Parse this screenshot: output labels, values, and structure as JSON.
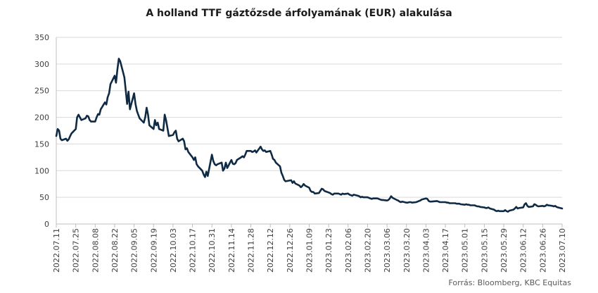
{
  "chart_data": {
    "type": "line",
    "title": "A holland TTF gáztőzsde árfolyamának (EUR) alakulása",
    "xlabel": "",
    "ylabel": "",
    "ylim": [
      0,
      350
    ],
    "yticks": [
      "0",
      "50",
      "100",
      "150",
      "200",
      "250",
      "300",
      "350"
    ],
    "xticks": [
      "2022.07.11",
      "2022.07.25",
      "2022.08.08",
      "2022.08.22",
      "2022.09.05",
      "2022.09.19",
      "2022.10.03",
      "2022.10.17",
      "2022.10.31",
      "2022.11.14",
      "2022.11.28",
      "2022.12.12",
      "2022.12.26",
      "2023.01.09",
      "2023.01.23",
      "2023.02.06",
      "2023.02.20",
      "2023.03.06",
      "2023.03.20",
      "2023.04.03",
      "2023.04.17",
      "2023.05.01",
      "2023.05.15",
      "2023.05.29",
      "2023.06.12",
      "2023.06.26",
      "2023.07.10"
    ],
    "grid": "horizontal",
    "color": "#0f2a44",
    "series": [
      {
        "values": [
          [
            "2022.07.11",
            165
          ],
          [
            "2022.07.12",
            178
          ],
          [
            "2022.07.13",
            175
          ],
          [
            "2022.07.14",
            160
          ],
          [
            "2022.07.15",
            157
          ],
          [
            "2022.07.18",
            160
          ],
          [
            "2022.07.19",
            156
          ],
          [
            "2022.07.20",
            159
          ],
          [
            "2022.07.21",
            165
          ],
          [
            "2022.07.22",
            170
          ],
          [
            "2022.07.25",
            178
          ],
          [
            "2022.07.26",
            200
          ],
          [
            "2022.07.27",
            205
          ],
          [
            "2022.07.28",
            200
          ],
          [
            "2022.07.29",
            195
          ],
          [
            "2022.08.01",
            198
          ],
          [
            "2022.08.02",
            203
          ],
          [
            "2022.08.03",
            202
          ],
          [
            "2022.08.04",
            195
          ],
          [
            "2022.08.05",
            192
          ],
          [
            "2022.08.08",
            192
          ],
          [
            "2022.08.09",
            200
          ],
          [
            "2022.08.10",
            206
          ],
          [
            "2022.08.11",
            205
          ],
          [
            "2022.08.12",
            215
          ],
          [
            "2022.08.15",
            228
          ],
          [
            "2022.08.16",
            224
          ],
          [
            "2022.08.17",
            238
          ],
          [
            "2022.08.18",
            245
          ],
          [
            "2022.08.19",
            262
          ],
          [
            "2022.08.22",
            278
          ],
          [
            "2022.08.23",
            265
          ],
          [
            "2022.08.24",
            290
          ],
          [
            "2022.08.25",
            310
          ],
          [
            "2022.08.26",
            305
          ],
          [
            "2022.08.29",
            275
          ],
          [
            "2022.08.30",
            250
          ],
          [
            "2022.08.31",
            225
          ],
          [
            "2022.09.01",
            248
          ],
          [
            "2022.09.02",
            215
          ],
          [
            "2022.09.05",
            245
          ],
          [
            "2022.09.06",
            225
          ],
          [
            "2022.09.07",
            212
          ],
          [
            "2022.09.08",
            205
          ],
          [
            "2022.09.09",
            198
          ],
          [
            "2022.09.12",
            190
          ],
          [
            "2022.09.13",
            200
          ],
          [
            "2022.09.14",
            218
          ],
          [
            "2022.09.15",
            205
          ],
          [
            "2022.09.16",
            185
          ],
          [
            "2022.09.19",
            178
          ],
          [
            "2022.09.20",
            195
          ],
          [
            "2022.09.21",
            185
          ],
          [
            "2022.09.22",
            190
          ],
          [
            "2022.09.23",
            178
          ],
          [
            "2022.09.26",
            175
          ],
          [
            "2022.09.27",
            205
          ],
          [
            "2022.09.28",
            195
          ],
          [
            "2022.09.29",
            180
          ],
          [
            "2022.09.30",
            165
          ],
          [
            "2022.10.03",
            167
          ],
          [
            "2022.10.04",
            172
          ],
          [
            "2022.10.05",
            175
          ],
          [
            "2022.10.06",
            160
          ],
          [
            "2022.10.07",
            155
          ],
          [
            "2022.10.10",
            160
          ],
          [
            "2022.10.11",
            155
          ],
          [
            "2022.10.12",
            140
          ],
          [
            "2022.10.13",
            142
          ],
          [
            "2022.10.14",
            135
          ],
          [
            "2022.10.17",
            125
          ],
          [
            "2022.10.18",
            120
          ],
          [
            "2022.10.19",
            125
          ],
          [
            "2022.10.20",
            112
          ],
          [
            "2022.10.21",
            108
          ],
          [
            "2022.10.24",
            100
          ],
          [
            "2022.10.25",
            93
          ],
          [
            "2022.10.26",
            88
          ],
          [
            "2022.10.27",
            98
          ],
          [
            "2022.10.28",
            90
          ],
          [
            "2022.10.31",
            130
          ],
          [
            "2022.11.01",
            118
          ],
          [
            "2022.11.02",
            112
          ],
          [
            "2022.11.03",
            110
          ],
          [
            "2022.11.04",
            112
          ],
          [
            "2022.11.07",
            115
          ],
          [
            "2022.11.08",
            100
          ],
          [
            "2022.11.09",
            104
          ],
          [
            "2022.11.10",
            115
          ],
          [
            "2022.11.11",
            105
          ],
          [
            "2022.11.14",
            120
          ],
          [
            "2022.11.15",
            113
          ],
          [
            "2022.11.16",
            112
          ],
          [
            "2022.11.17",
            114
          ],
          [
            "2022.11.18",
            120
          ],
          [
            "2022.11.21",
            125
          ],
          [
            "2022.11.22",
            127
          ],
          [
            "2022.11.23",
            125
          ],
          [
            "2022.11.24",
            130
          ],
          [
            "2022.11.25",
            137
          ],
          [
            "2022.11.28",
            137
          ],
          [
            "2022.11.29",
            135
          ],
          [
            "2022.11.30",
            136
          ],
          [
            "2022.12.01",
            138
          ],
          [
            "2022.12.02",
            134
          ],
          [
            "2022.12.05",
            145
          ],
          [
            "2022.12.06",
            140
          ],
          [
            "2022.12.07",
            137
          ],
          [
            "2022.12.08",
            138
          ],
          [
            "2022.12.09",
            135
          ],
          [
            "2022.12.12",
            137
          ],
          [
            "2022.12.13",
            130
          ],
          [
            "2022.12.14",
            122
          ],
          [
            "2022.12.15",
            120
          ],
          [
            "2022.12.16",
            115
          ],
          [
            "2022.12.19",
            108
          ],
          [
            "2022.12.20",
            96
          ],
          [
            "2022.12.21",
            90
          ],
          [
            "2022.12.22",
            83
          ],
          [
            "2022.12.23",
            80
          ],
          [
            "2022.12.27",
            82
          ],
          [
            "2022.12.28",
            77
          ],
          [
            "2022.12.29",
            80
          ],
          [
            "2022.12.30",
            76
          ],
          [
            "2023.01.02",
            72
          ],
          [
            "2023.01.03",
            69
          ],
          [
            "2023.01.04",
            71
          ],
          [
            "2023.01.05",
            75
          ],
          [
            "2023.01.06",
            72
          ],
          [
            "2023.01.09",
            68
          ],
          [
            "2023.01.10",
            62
          ],
          [
            "2023.01.11",
            60
          ],
          [
            "2023.01.12",
            60
          ],
          [
            "2023.01.13",
            57
          ],
          [
            "2023.01.16",
            58
          ],
          [
            "2023.01.17",
            62
          ],
          [
            "2023.01.18",
            66
          ],
          [
            "2023.01.19",
            65
          ],
          [
            "2023.01.20",
            62
          ],
          [
            "2023.01.23",
            59
          ],
          [
            "2023.01.24",
            58
          ],
          [
            "2023.01.25",
            56
          ],
          [
            "2023.01.26",
            55
          ],
          [
            "2023.01.27",
            57
          ],
          [
            "2023.01.30",
            57
          ],
          [
            "2023.01.31",
            56
          ],
          [
            "2023.02.01",
            55
          ],
          [
            "2023.02.02",
            57
          ],
          [
            "2023.02.03",
            56
          ],
          [
            "2023.02.06",
            57
          ],
          [
            "2023.02.07",
            55
          ],
          [
            "2023.02.08",
            54
          ],
          [
            "2023.02.09",
            53
          ],
          [
            "2023.02.10",
            55
          ],
          [
            "2023.02.13",
            53
          ],
          [
            "2023.02.14",
            52
          ],
          [
            "2023.02.15",
            50
          ],
          [
            "2023.02.16",
            51
          ],
          [
            "2023.02.17",
            50
          ],
          [
            "2023.02.20",
            50
          ],
          [
            "2023.02.21",
            49
          ],
          [
            "2023.02.22",
            48
          ],
          [
            "2023.02.23",
            47
          ],
          [
            "2023.02.24",
            48
          ],
          [
            "2023.02.27",
            48
          ],
          [
            "2023.02.28",
            47
          ],
          [
            "2023.03.01",
            46
          ],
          [
            "2023.03.02",
            45
          ],
          [
            "2023.03.03",
            45
          ],
          [
            "2023.03.06",
            44
          ],
          [
            "2023.03.07",
            45
          ],
          [
            "2023.03.08",
            48
          ],
          [
            "2023.03.09",
            52
          ],
          [
            "2023.03.10",
            49
          ],
          [
            "2023.03.13",
            45
          ],
          [
            "2023.03.14",
            44
          ],
          [
            "2023.03.15",
            42
          ],
          [
            "2023.03.16",
            41
          ],
          [
            "2023.03.17",
            42
          ],
          [
            "2023.03.20",
            40
          ],
          [
            "2023.03.21",
            40
          ],
          [
            "2023.03.22",
            41
          ],
          [
            "2023.03.23",
            41
          ],
          [
            "2023.03.24",
            40
          ],
          [
            "2023.03.27",
            41
          ],
          [
            "2023.03.28",
            42
          ],
          [
            "2023.03.29",
            43
          ],
          [
            "2023.03.30",
            44
          ],
          [
            "2023.03.31",
            46
          ],
          [
            "2023.04.03",
            48
          ],
          [
            "2023.04.04",
            47
          ],
          [
            "2023.04.05",
            43
          ],
          [
            "2023.04.06",
            42
          ],
          [
            "2023.04.07",
            42
          ],
          [
            "2023.04.11",
            43
          ],
          [
            "2023.04.12",
            42
          ],
          [
            "2023.04.13",
            41
          ],
          [
            "2023.04.14",
            41
          ],
          [
            "2023.04.17",
            41
          ],
          [
            "2023.04.18",
            40
          ],
          [
            "2023.04.19",
            40
          ],
          [
            "2023.04.20",
            39
          ],
          [
            "2023.04.21",
            39
          ],
          [
            "2023.04.24",
            39
          ],
          [
            "2023.04.25",
            38
          ],
          [
            "2023.04.26",
            38
          ],
          [
            "2023.04.27",
            38
          ],
          [
            "2023.04.28",
            37
          ],
          [
            "2023.05.01",
            36
          ],
          [
            "2023.05.02",
            37
          ],
          [
            "2023.05.03",
            36
          ],
          [
            "2023.05.04",
            36
          ],
          [
            "2023.05.05",
            35
          ],
          [
            "2023.05.08",
            35
          ],
          [
            "2023.05.09",
            34
          ],
          [
            "2023.05.10",
            33
          ],
          [
            "2023.05.11",
            33
          ],
          [
            "2023.05.12",
            32
          ],
          [
            "2023.05.15",
            31
          ],
          [
            "2023.05.16",
            30
          ],
          [
            "2023.05.17",
            30
          ],
          [
            "2023.05.18",
            31
          ],
          [
            "2023.05.19",
            29
          ],
          [
            "2023.05.22",
            27
          ],
          [
            "2023.05.23",
            25
          ],
          [
            "2023.05.24",
            24
          ],
          [
            "2023.05.25",
            25
          ],
          [
            "2023.05.26",
            24
          ],
          [
            "2023.05.29",
            24
          ],
          [
            "2023.05.30",
            26
          ],
          [
            "2023.05.31",
            24
          ],
          [
            "2023.06.01",
            23
          ],
          [
            "2023.06.02",
            25
          ],
          [
            "2023.06.05",
            27
          ],
          [
            "2023.06.06",
            29
          ],
          [
            "2023.06.07",
            32
          ],
          [
            "2023.06.08",
            29
          ],
          [
            "2023.06.09",
            30
          ],
          [
            "2023.06.12",
            31
          ],
          [
            "2023.06.13",
            37
          ],
          [
            "2023.06.14",
            39
          ],
          [
            "2023.06.15",
            34
          ],
          [
            "2023.06.16",
            32
          ],
          [
            "2023.06.19",
            33
          ],
          [
            "2023.06.20",
            37
          ],
          [
            "2023.06.21",
            36
          ],
          [
            "2023.06.22",
            34
          ],
          [
            "2023.06.23",
            33
          ],
          [
            "2023.06.26",
            34
          ],
          [
            "2023.06.27",
            33
          ],
          [
            "2023.06.28",
            34
          ],
          [
            "2023.06.29",
            36
          ],
          [
            "2023.06.30",
            35
          ],
          [
            "2023.07.03",
            34
          ],
          [
            "2023.07.04",
            33
          ],
          [
            "2023.07.05",
            34
          ],
          [
            "2023.07.06",
            32
          ],
          [
            "2023.07.07",
            31
          ],
          [
            "2023.07.10",
            29
          ]
        ]
      }
    ]
  },
  "source": "Forrás: Bloomberg, KBC Equitas"
}
